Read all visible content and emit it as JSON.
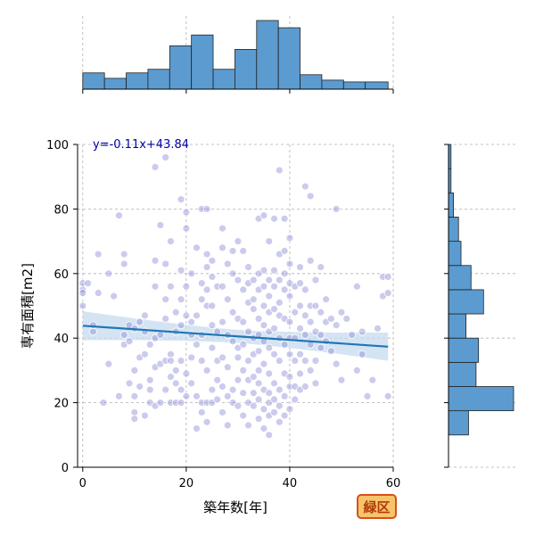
{
  "chart_data": {
    "type": "scatter",
    "title": "",
    "xlabel": "築年数[年]",
    "ylabel": "専有面積[m2]",
    "xlim": [
      -1,
      60
    ],
    "ylim": [
      0,
      100
    ],
    "x_ticks": [
      "0",
      "20",
      "40",
      "60"
    ],
    "y_ticks": [
      "0",
      "20",
      "40",
      "60",
      "80",
      "100"
    ],
    "grid": true,
    "regression": {
      "label": "y=-0.11x+43.84",
      "slope": -0.11,
      "intercept": 43.84,
      "x_range": [
        0,
        59
      ],
      "ci_half_width": 4.5
    },
    "badge": "緑区",
    "colors": {
      "point_fill": "#8b8bd6",
      "point_edge": "#ffffff",
      "regression_line": "#1f77b4",
      "ci_band": "#c6dbef",
      "hist_fill": "#5b9bd0",
      "hist_edge": "#222222",
      "equation_text": "#0000aa",
      "badge_bg": "#f7c46c",
      "badge_border": "#d94f1a",
      "badge_text": "#b03a0a"
    },
    "x_histogram": {
      "bin_edges": [
        0,
        4.2,
        8.4,
        12.6,
        16.8,
        21,
        25.2,
        29.4,
        33.6,
        37.8,
        42,
        46.2,
        50.4,
        54.6,
        59
      ],
      "counts": [
        9,
        6,
        9,
        11,
        24,
        30,
        11,
        22,
        38,
        34,
        8,
        5,
        4,
        4
      ]
    },
    "y_histogram": {
      "bin_edges": [
        10,
        17.5,
        25,
        32.5,
        40,
        47.5,
        55,
        62.5,
        70,
        77.5,
        85,
        92.5,
        100
      ],
      "counts": [
        8,
        26,
        11,
        12,
        7,
        14,
        9,
        5,
        4,
        2,
        1,
        1
      ]
    },
    "points": [
      [
        0,
        57
      ],
      [
        0,
        55
      ],
      [
        0,
        54
      ],
      [
        0,
        50
      ],
      [
        1,
        57
      ],
      [
        2,
        42
      ],
      [
        2,
        44
      ],
      [
        3,
        66
      ],
      [
        3,
        54
      ],
      [
        4,
        20
      ],
      [
        5,
        60
      ],
      [
        5,
        32
      ],
      [
        6,
        53
      ],
      [
        7,
        22
      ],
      [
        7,
        78
      ],
      [
        8,
        66
      ],
      [
        8,
        63
      ],
      [
        8,
        41
      ],
      [
        8,
        38
      ],
      [
        9,
        39
      ],
      [
        9,
        44
      ],
      [
        9,
        26
      ],
      [
        10,
        43
      ],
      [
        10,
        30
      ],
      [
        10,
        22
      ],
      [
        10,
        17
      ],
      [
        10,
        15
      ],
      [
        11,
        34
      ],
      [
        11,
        25
      ],
      [
        11,
        45
      ],
      [
        12,
        47
      ],
      [
        12,
        42
      ],
      [
        12,
        35
      ],
      [
        12,
        16
      ],
      [
        13,
        27
      ],
      [
        13,
        20
      ],
      [
        13,
        38
      ],
      [
        13,
        24
      ],
      [
        14,
        56
      ],
      [
        14,
        40
      ],
      [
        14,
        31
      ],
      [
        14,
        64
      ],
      [
        14,
        93
      ],
      [
        14,
        19
      ],
      [
        15,
        75
      ],
      [
        15,
        41
      ],
      [
        15,
        20
      ],
      [
        15,
        32
      ],
      [
        16,
        96
      ],
      [
        16,
        52
      ],
      [
        16,
        63
      ],
      [
        16,
        46
      ],
      [
        16,
        33
      ],
      [
        16,
        24
      ],
      [
        17,
        35
      ],
      [
        17,
        20
      ],
      [
        17,
        28
      ],
      [
        17,
        56
      ],
      [
        17,
        70
      ],
      [
        17,
        33
      ],
      [
        18,
        42
      ],
      [
        18,
        48
      ],
      [
        18,
        30
      ],
      [
        18,
        26
      ],
      [
        18,
        20
      ],
      [
        19,
        83
      ],
      [
        19,
        61
      ],
      [
        19,
        52
      ],
      [
        19,
        33
      ],
      [
        19,
        24
      ],
      [
        19,
        20
      ],
      [
        19,
        44
      ],
      [
        20,
        79
      ],
      [
        20,
        74
      ],
      [
        20,
        56
      ],
      [
        20,
        47
      ],
      [
        20,
        29
      ],
      [
        20,
        22
      ],
      [
        21,
        45
      ],
      [
        21,
        41
      ],
      [
        21,
        34
      ],
      [
        21,
        60
      ],
      [
        21,
        26
      ],
      [
        22,
        68
      ],
      [
        22,
        47
      ],
      [
        22,
        38
      ],
      [
        22,
        22
      ],
      [
        22,
        12
      ],
      [
        23,
        80
      ],
      [
        23,
        57
      ],
      [
        23,
        52
      ],
      [
        23,
        41
      ],
      [
        23,
        33
      ],
      [
        23,
        20
      ],
      [
        23,
        17
      ],
      [
        24,
        80
      ],
      [
        24,
        66
      ],
      [
        24,
        62
      ],
      [
        24,
        55
      ],
      [
        24,
        50
      ],
      [
        24,
        30
      ],
      [
        24,
        20
      ],
      [
        24,
        14
      ],
      [
        25,
        64
      ],
      [
        25,
        59
      ],
      [
        25,
        50
      ],
      [
        25,
        44
      ],
      [
        25,
        37
      ],
      [
        25,
        24
      ],
      [
        25,
        20
      ],
      [
        26,
        56
      ],
      [
        26,
        42
      ],
      [
        26,
        33
      ],
      [
        26,
        27
      ],
      [
        26,
        21
      ],
      [
        27,
        74
      ],
      [
        27,
        68
      ],
      [
        27,
        56
      ],
      [
        27,
        45
      ],
      [
        27,
        34
      ],
      [
        27,
        25
      ],
      [
        27,
        17
      ],
      [
        28,
        63
      ],
      [
        28,
        52
      ],
      [
        28,
        41
      ],
      [
        28,
        31
      ],
      [
        28,
        22
      ],
      [
        28,
        13
      ],
      [
        29,
        67
      ],
      [
        29,
        60
      ],
      [
        29,
        48
      ],
      [
        29,
        39
      ],
      [
        29,
        24
      ],
      [
        29,
        20
      ],
      [
        30,
        70
      ],
      [
        30,
        58
      ],
      [
        30,
        46
      ],
      [
        30,
        37
      ],
      [
        30,
        34
      ],
      [
        30,
        27
      ],
      [
        30,
        19
      ],
      [
        31,
        67
      ],
      [
        31,
        55
      ],
      [
        31,
        45
      ],
      [
        31,
        38
      ],
      [
        31,
        30
      ],
      [
        31,
        23
      ],
      [
        31,
        16
      ],
      [
        32,
        62
      ],
      [
        32,
        57
      ],
      [
        32,
        51
      ],
      [
        32,
        42
      ],
      [
        32,
        33
      ],
      [
        32,
        27
      ],
      [
        32,
        20
      ],
      [
        32,
        13
      ],
      [
        33,
        58
      ],
      [
        33,
        52
      ],
      [
        33,
        49
      ],
      [
        33,
        40
      ],
      [
        33,
        35
      ],
      [
        33,
        28
      ],
      [
        33,
        23
      ],
      [
        33,
        19
      ],
      [
        34,
        77
      ],
      [
        34,
        60
      ],
      [
        34,
        55
      ],
      [
        34,
        46
      ],
      [
        34,
        41
      ],
      [
        34,
        36
      ],
      [
        34,
        30
      ],
      [
        34,
        26
      ],
      [
        34,
        21
      ],
      [
        34,
        15
      ],
      [
        35,
        78
      ],
      [
        35,
        61
      ],
      [
        35,
        56
      ],
      [
        35,
        50
      ],
      [
        35,
        44
      ],
      [
        35,
        39
      ],
      [
        35,
        32
      ],
      [
        35,
        24
      ],
      [
        35,
        18
      ],
      [
        35,
        12
      ],
      [
        36,
        70
      ],
      [
        36,
        58
      ],
      [
        36,
        53
      ],
      [
        36,
        48
      ],
      [
        36,
        42
      ],
      [
        36,
        37
      ],
      [
        36,
        29
      ],
      [
        36,
        23
      ],
      [
        36,
        20
      ],
      [
        36,
        16
      ],
      [
        36,
        10
      ],
      [
        37,
        77
      ],
      [
        37,
        61
      ],
      [
        37,
        56
      ],
      [
        37,
        49
      ],
      [
        37,
        43
      ],
      [
        37,
        35
      ],
      [
        37,
        26
      ],
      [
        37,
        21
      ],
      [
        37,
        17
      ],
      [
        38,
        92
      ],
      [
        38,
        66
      ],
      [
        38,
        58
      ],
      [
        38,
        51
      ],
      [
        38,
        47
      ],
      [
        38,
        40
      ],
      [
        38,
        33
      ],
      [
        38,
        24
      ],
      [
        38,
        19
      ],
      [
        38,
        14
      ],
      [
        39,
        77
      ],
      [
        39,
        67
      ],
      [
        39,
        60
      ],
      [
        39,
        55
      ],
      [
        39,
        46
      ],
      [
        39,
        38
      ],
      [
        39,
        29
      ],
      [
        39,
        22
      ],
      [
        39,
        16
      ],
      [
        40,
        71
      ],
      [
        40,
        63
      ],
      [
        40,
        57
      ],
      [
        40,
        53
      ],
      [
        40,
        45
      ],
      [
        40,
        40
      ],
      [
        40,
        35
      ],
      [
        40,
        28
      ],
      [
        40,
        25
      ],
      [
        40,
        18
      ],
      [
        41,
        56
      ],
      [
        41,
        48
      ],
      [
        41,
        40
      ],
      [
        41,
        33
      ],
      [
        41,
        25
      ],
      [
        41,
        21
      ],
      [
        42,
        62
      ],
      [
        42,
        57
      ],
      [
        42,
        50
      ],
      [
        42,
        43
      ],
      [
        42,
        35
      ],
      [
        42,
        29
      ],
      [
        42,
        24
      ],
      [
        43,
        87
      ],
      [
        43,
        55
      ],
      [
        43,
        47
      ],
      [
        43,
        41
      ],
      [
        43,
        33
      ],
      [
        43,
        25
      ],
      [
        44,
        84
      ],
      [
        44,
        64
      ],
      [
        44,
        50
      ],
      [
        44,
        45
      ],
      [
        44,
        38
      ],
      [
        44,
        30
      ],
      [
        45,
        58
      ],
      [
        45,
        50
      ],
      [
        45,
        42
      ],
      [
        45,
        33
      ],
      [
        45,
        26
      ],
      [
        46,
        62
      ],
      [
        46,
        48
      ],
      [
        46,
        41
      ],
      [
        46,
        37
      ],
      [
        47,
        52
      ],
      [
        47,
        45
      ],
      [
        47,
        39
      ],
      [
        48,
        46
      ],
      [
        48,
        36
      ],
      [
        49,
        80
      ],
      [
        49,
        44
      ],
      [
        49,
        32
      ],
      [
        50,
        48
      ],
      [
        50,
        27
      ],
      [
        51,
        46
      ],
      [
        52,
        41
      ],
      [
        53,
        56
      ],
      [
        53,
        30
      ],
      [
        54,
        42
      ],
      [
        54,
        35
      ],
      [
        55,
        22
      ],
      [
        56,
        27
      ],
      [
        57,
        43
      ],
      [
        58,
        59
      ],
      [
        58,
        53
      ],
      [
        59,
        59
      ],
      [
        59,
        54
      ],
      [
        59,
        22
      ]
    ]
  }
}
